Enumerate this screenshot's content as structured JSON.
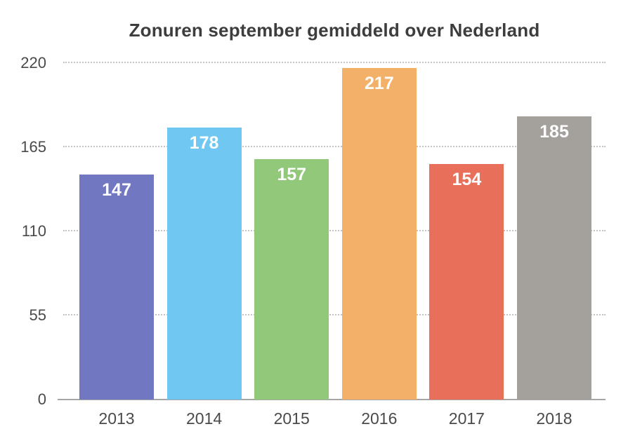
{
  "chart_data": {
    "type": "bar",
    "title": "Zonuren september gemiddeld over Nederland",
    "categories": [
      "2013",
      "2014",
      "2015",
      "2016",
      "2017",
      "2018"
    ],
    "values": [
      147,
      178,
      157,
      217,
      154,
      185
    ],
    "bar_colors": [
      "#7177C1",
      "#70C8F2",
      "#91C87A",
      "#F2B068",
      "#E8705A",
      "#A4A09B"
    ],
    "yticks": [
      0,
      55,
      110,
      165,
      220
    ],
    "ylim": [
      0,
      220
    ],
    "xlabel": "",
    "ylabel": "",
    "legend": "none",
    "grid": "horizontal-dotted",
    "value_labels_position": "inside-top",
    "colors": {
      "background": "#FFFFFF",
      "title_text": "#3D3D3D",
      "tick_text": "#4A4A4A",
      "value_label_text": "#FFFFFF",
      "gridline": "#C3C3C3",
      "axis_line": "#A6A6A6"
    }
  }
}
